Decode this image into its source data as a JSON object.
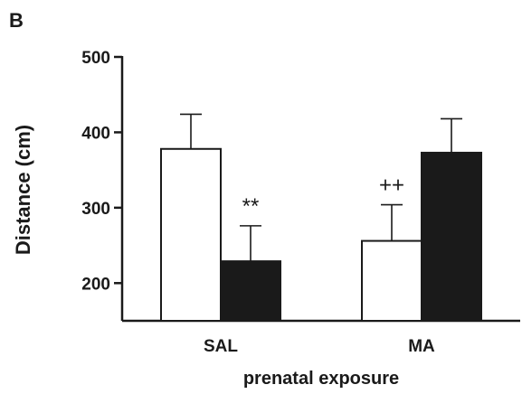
{
  "panel_label": "B",
  "chart_data": {
    "type": "bar",
    "title": "",
    "xlabel": "prenatal exposure",
    "ylabel": "Distance (cm)",
    "categories": [
      "SAL",
      "MA"
    ],
    "ylim": [
      150,
      500
    ],
    "yticks": [
      200,
      300,
      400,
      500
    ],
    "grid": false,
    "series": [
      {
        "values": [
          378,
          256
        ],
        "errors": [
          46,
          48
        ],
        "color": "#ffffff"
      },
      {
        "values": [
          229,
          373
        ],
        "errors": [
          47,
          45
        ],
        "color": "#1a1a1a"
      }
    ],
    "annotations": [
      {
        "text": "**",
        "category": 0,
        "series": 1
      },
      {
        "text": "++",
        "category": 1,
        "series": 0
      }
    ]
  }
}
